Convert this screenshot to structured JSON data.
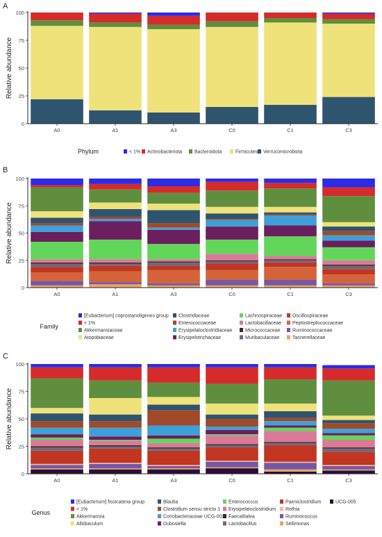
{
  "chart_data": [
    {
      "type": "bar",
      "stacked": true,
      "panel_label": "A",
      "categories": [
        "A0",
        "A1",
        "A3",
        "C0",
        "C1",
        "C3"
      ],
      "ylabel": "Relative abundance",
      "ylim": [
        0,
        100
      ],
      "yticks": [
        0,
        25,
        50,
        75,
        100
      ],
      "legend_title": "Phylum",
      "legend_position": "bottom",
      "series": [
        {
          "name": "Verrucomicrobiota",
          "color": "#2f5470",
          "values": [
            22,
            12,
            10,
            15,
            17,
            24
          ]
        },
        {
          "name": "Firmicutes",
          "color": "#efe27a",
          "values": [
            66,
            75,
            75,
            72,
            74,
            66
          ]
        },
        {
          "name": "Bacteroidota",
          "color": "#5f8f3e",
          "values": [
            5,
            4,
            4,
            5,
            4,
            4
          ]
        },
        {
          "name": "Actinobacteriota",
          "color": "#d52b2b",
          "values": [
            7,
            8,
            8,
            8,
            5,
            5
          ]
        },
        {
          "name": "< 1%",
          "color": "#2b2be8",
          "values": [
            0,
            1,
            3,
            0,
            0,
            1
          ]
        }
      ],
      "legend_order": [
        "< 1%",
        "Actinobacteriota",
        "Bacteroidota",
        "Firmicutes",
        "Verrucomicrobiota"
      ],
      "legend_rows": 1
    },
    {
      "type": "bar",
      "stacked": true,
      "panel_label": "B",
      "categories": [
        "A0",
        "A1",
        "A3",
        "C0",
        "C1",
        "C3"
      ],
      "ylabel": "Relative abundance",
      "ylim": [
        0,
        100
      ],
      "yticks": [
        0,
        25,
        50,
        75,
        100
      ],
      "legend_title": "Family",
      "legend_position": "bottom",
      "series": [
        {
          "name": "Tannerellaceae",
          "color": "#f0a35c",
          "values": [
            2,
            3,
            2,
            2,
            2,
            2
          ]
        },
        {
          "name": "Ruminococcaceae",
          "color": "#7358a8",
          "values": [
            4,
            2,
            2,
            5,
            5,
            2
          ]
        },
        {
          "name": "Peptostreptococcaceae",
          "color": "#d5633a",
          "values": [
            8,
            10,
            12,
            9,
            12,
            8
          ]
        },
        {
          "name": "Oscillospiraceae",
          "color": "#c23521",
          "values": [
            5,
            5,
            4,
            6,
            4,
            5
          ]
        },
        {
          "name": "Muribaculaceae",
          "color": "#6a6a82",
          "values": [
            3,
            2,
            3,
            2,
            2,
            3
          ]
        },
        {
          "name": "Micrococcaceae",
          "color": "#4e1f12",
          "values": [
            1,
            1,
            1,
            1,
            1,
            1
          ]
        },
        {
          "name": "Lactobacillaceae",
          "color": "#d97a99",
          "values": [
            3,
            3,
            2,
            6,
            3,
            4
          ]
        },
        {
          "name": "Lachnospiraceae",
          "color": "#62d65a",
          "values": [
            16,
            18,
            14,
            13,
            18,
            12
          ]
        },
        {
          "name": "Erysipelotrichaceae",
          "color": "#6b1f5e",
          "values": [
            9,
            17,
            13,
            12,
            10,
            6
          ]
        },
        {
          "name": "Erysipelatoclostridiaceae",
          "color": "#3fa0d8",
          "values": [
            6,
            2,
            2,
            6,
            9,
            5
          ]
        },
        {
          "name": "Enterococcaceae",
          "color": "#a04a2a",
          "values": [
            2,
            2,
            4,
            1,
            1,
            4
          ]
        },
        {
          "name": "Clostridiaceae",
          "color": "#2f5470",
          "values": [
            5,
            7,
            12,
            5,
            2,
            4
          ]
        },
        {
          "name": "Atopobiaceae",
          "color": "#efe27a",
          "values": [
            6,
            6,
            6,
            6,
            5,
            4
          ]
        },
        {
          "name": "Akkermansiaceae",
          "color": "#5f8f3e",
          "values": [
            22,
            12,
            10,
            15,
            17,
            24
          ]
        },
        {
          "name": "< 1%",
          "color": "#d52b2b",
          "values": [
            2,
            5,
            6,
            8,
            5,
            8
          ]
        },
        {
          "name": "[Eubacterium] coprostanoligenes group",
          "color": "#2b2be8",
          "values": [
            6,
            5,
            7,
            3,
            4,
            8
          ]
        }
      ],
      "legend_order": [
        "[Eubacterium] coprostanoligenes group",
        "< 1%",
        "Akkermansiaceae",
        "Atopobiaceae",
        "Clostridiaceae",
        "Enterococcaceae",
        "Erysipelatoclostridiaceae",
        "Erysipelotrichaceae",
        "Lachnospiraceae",
        "Lactobacillaceae",
        "Micrococcaceae",
        "Muribaculaceae",
        "Oscillospiraceae",
        "Peptostreptococcaceae",
        "Ruminococcaceae",
        "Tannerellaceae"
      ],
      "legend_rows": 4
    },
    {
      "type": "bar",
      "stacked": true,
      "panel_label": "C",
      "categories": [
        "A0",
        "A1",
        "A3",
        "C0",
        "C1",
        "C3"
      ],
      "ylabel": "Relative abundance",
      "ylim": [
        0,
        100
      ],
      "yticks": [
        0,
        25,
        50,
        75,
        100
      ],
      "legend_title": "Genus",
      "legend_position": "bottom",
      "series": [
        {
          "name": "UCG-005",
          "color": "#2a0f3c",
          "values": [
            4,
            4,
            4,
            5,
            2,
            3
          ]
        },
        {
          "name": "Sellimonas",
          "color": "#f0a35c",
          "values": [
            1,
            1,
            1,
            1,
            2,
            1
          ]
        },
        {
          "name": "Ruminococcus",
          "color": "#7358a8",
          "values": [
            3,
            4,
            2,
            5,
            6,
            3
          ]
        },
        {
          "name": "Rothia",
          "color": "#f0b8a0",
          "values": [
            1,
            1,
            1,
            1,
            1,
            1
          ]
        },
        {
          "name": "Paeniclostridium",
          "color": "#c23521",
          "values": [
            12,
            13,
            13,
            12,
            15,
            12
          ]
        },
        {
          "name": "Lactobacillus",
          "color": "#6a6a82",
          "values": [
            3,
            2,
            2,
            2,
            2,
            3
          ]
        },
        {
          "name": "Faecalitalea",
          "color": "#4e1f12",
          "values": [
            1,
            1,
            1,
            1,
            1,
            1
          ]
        },
        {
          "name": "Erysipelatoclostridium",
          "color": "#d97a99",
          "values": [
            6,
            4,
            4,
            8,
            10,
            7
          ]
        },
        {
          "name": "Enterococcus",
          "color": "#62d65a",
          "values": [
            2,
            1,
            4,
            1,
            3,
            4
          ]
        },
        {
          "name": "Dubosiella",
          "color": "#6b1f5e",
          "values": [
            3,
            3,
            3,
            4,
            2,
            2
          ]
        },
        {
          "name": "Coriobacteriaceae UCG-002",
          "color": "#3fa0d8",
          "values": [
            6,
            8,
            9,
            3,
            4,
            4
          ]
        },
        {
          "name": "Clostridium sensu stricto 1",
          "color": "#a04a2a",
          "values": [
            6,
            6,
            14,
            7,
            3,
            5
          ]
        },
        {
          "name": "Blautia",
          "color": "#2f5470",
          "values": [
            7,
            6,
            5,
            4,
            6,
            3
          ]
        },
        {
          "name": "Allobaculum",
          "color": "#efe27a",
          "values": [
            5,
            15,
            7,
            10,
            7,
            4
          ]
        },
        {
          "name": "Akkermansia",
          "color": "#5f8f3e",
          "values": [
            27,
            16,
            13,
            18,
            22,
            32
          ]
        },
        {
          "name": "< 1%",
          "color": "#d52b2b",
          "values": [
            10,
            12,
            14,
            15,
            11,
            11
          ]
        },
        {
          "name": "[Eubacterium] fissicatena group",
          "color": "#2b2be8",
          "values": [
            3,
            3,
            3,
            3,
            3,
            3
          ]
        }
      ],
      "legend_order": [
        "[Eubacterium] fissicatena group",
        "< 1%",
        "Akkermansia",
        "Allobaculum",
        "Blautia",
        "Clostridium sensu stricto 1",
        "Coriobacteriaceae UCG-002",
        "Dubosiella",
        "Enterococcus",
        "Erysipelatoclostridium",
        "Faecalitalea",
        "Lactobacillus",
        "Paeniclostridium",
        "Rothia",
        "Ruminococcus",
        "Sellimonas",
        "UCG-005"
      ],
      "legend_rows": 4
    }
  ]
}
